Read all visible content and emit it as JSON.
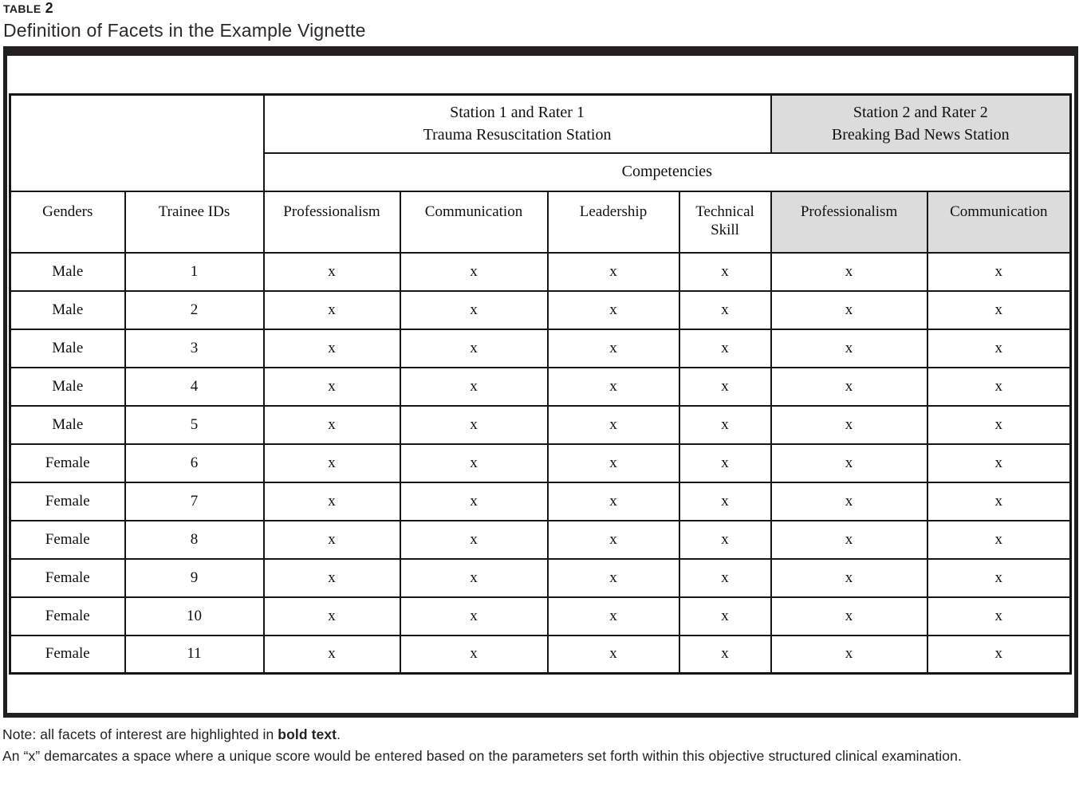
{
  "caption": {
    "table_label": "TABLE",
    "table_number": "2",
    "subtitle": "Definition of Facets in the Example Vignette"
  },
  "table": {
    "station1": {
      "line1": "Station 1 and Rater 1",
      "line2": "Trauma Resuscitation Station"
    },
    "station2": {
      "line1": "Station 2 and Rater 2",
      "line2": "Breaking Bad News Station"
    },
    "competencies_label": "Competencies",
    "columns": {
      "genders": "Genders",
      "trainee_ids": "Trainee IDs",
      "station1_competencies": [
        "Professionalism",
        "Communication",
        "Leadership",
        "Technical Skill"
      ],
      "station2_competencies": [
        "Professionalism",
        "Communication"
      ]
    },
    "rows": [
      {
        "gender": "Male",
        "trainee_id": "1",
        "marks": [
          "x",
          "x",
          "x",
          "x",
          "x",
          "x"
        ]
      },
      {
        "gender": "Male",
        "trainee_id": "2",
        "marks": [
          "x",
          "x",
          "x",
          "x",
          "x",
          "x"
        ]
      },
      {
        "gender": "Male",
        "trainee_id": "3",
        "marks": [
          "x",
          "x",
          "x",
          "x",
          "x",
          "x"
        ]
      },
      {
        "gender": "Male",
        "trainee_id": "4",
        "marks": [
          "x",
          "x",
          "x",
          "x",
          "x",
          "x"
        ]
      },
      {
        "gender": "Male",
        "trainee_id": "5",
        "marks": [
          "x",
          "x",
          "x",
          "x",
          "x",
          "x"
        ]
      },
      {
        "gender": "Female",
        "trainee_id": "6",
        "marks": [
          "x",
          "x",
          "x",
          "x",
          "x",
          "x"
        ]
      },
      {
        "gender": "Female",
        "trainee_id": "7",
        "marks": [
          "x",
          "x",
          "x",
          "x",
          "x",
          "x"
        ]
      },
      {
        "gender": "Female",
        "trainee_id": "8",
        "marks": [
          "x",
          "x",
          "x",
          "x",
          "x",
          "x"
        ]
      },
      {
        "gender": "Female",
        "trainee_id": "9",
        "marks": [
          "x",
          "x",
          "x",
          "x",
          "x",
          "x"
        ]
      },
      {
        "gender": "Female",
        "trainee_id": "10",
        "marks": [
          "x",
          "x",
          "x",
          "x",
          "x",
          "x"
        ]
      },
      {
        "gender": "Female",
        "trainee_id": "11",
        "marks": [
          "x",
          "x",
          "x",
          "x",
          "x",
          "x"
        ]
      }
    ]
  },
  "notes": {
    "note1_prefix": "Note: all facets of interest are highlighted in ",
    "note1_bold": "bold text",
    "note1_suffix": ".",
    "note2": "An “x” demarcates a space where a unique score would be entered based on the parameters set forth within this objective structured clinical examination."
  },
  "colors": {
    "header_shade": "#dcdcdc",
    "frame_bar": "#221f1f",
    "grid_line": "#161616"
  }
}
